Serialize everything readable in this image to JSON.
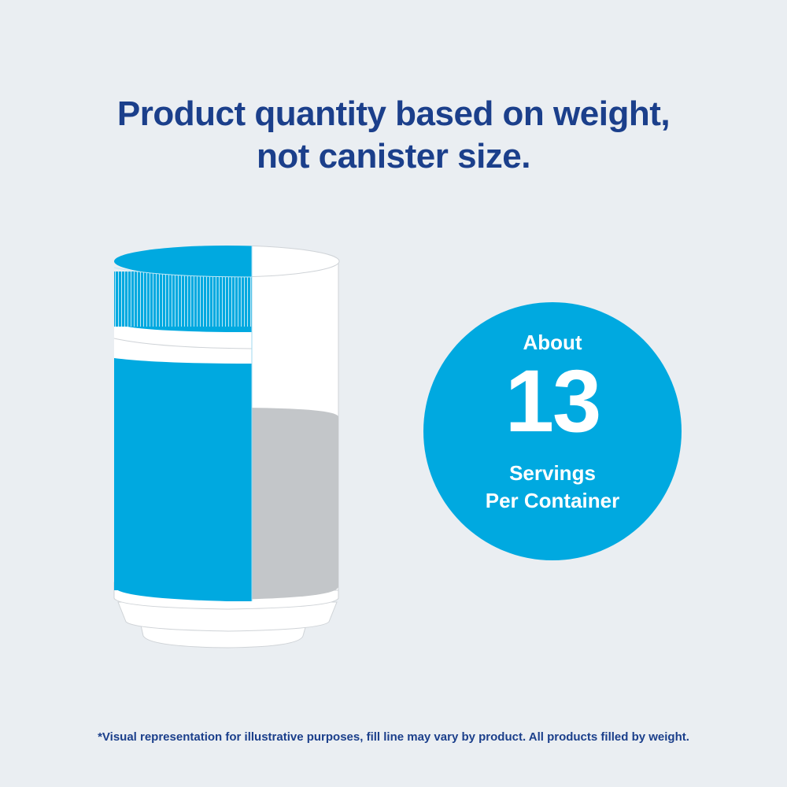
{
  "headline": {
    "line1": "Product quantity based on weight,",
    "line2": "not canister size."
  },
  "badge": {
    "about": "About",
    "number": "13",
    "line1": "Servings",
    "line2": "Per Container"
  },
  "footnote": "*Visual representation for illustrative purposes, fill line may vary by product. All products filled by weight.",
  "colors": {
    "background": "#eaeef2",
    "headline": "#1b3f8b",
    "brand_blue": "#00a9e0",
    "fill_gray": "#c3c6c9"
  }
}
